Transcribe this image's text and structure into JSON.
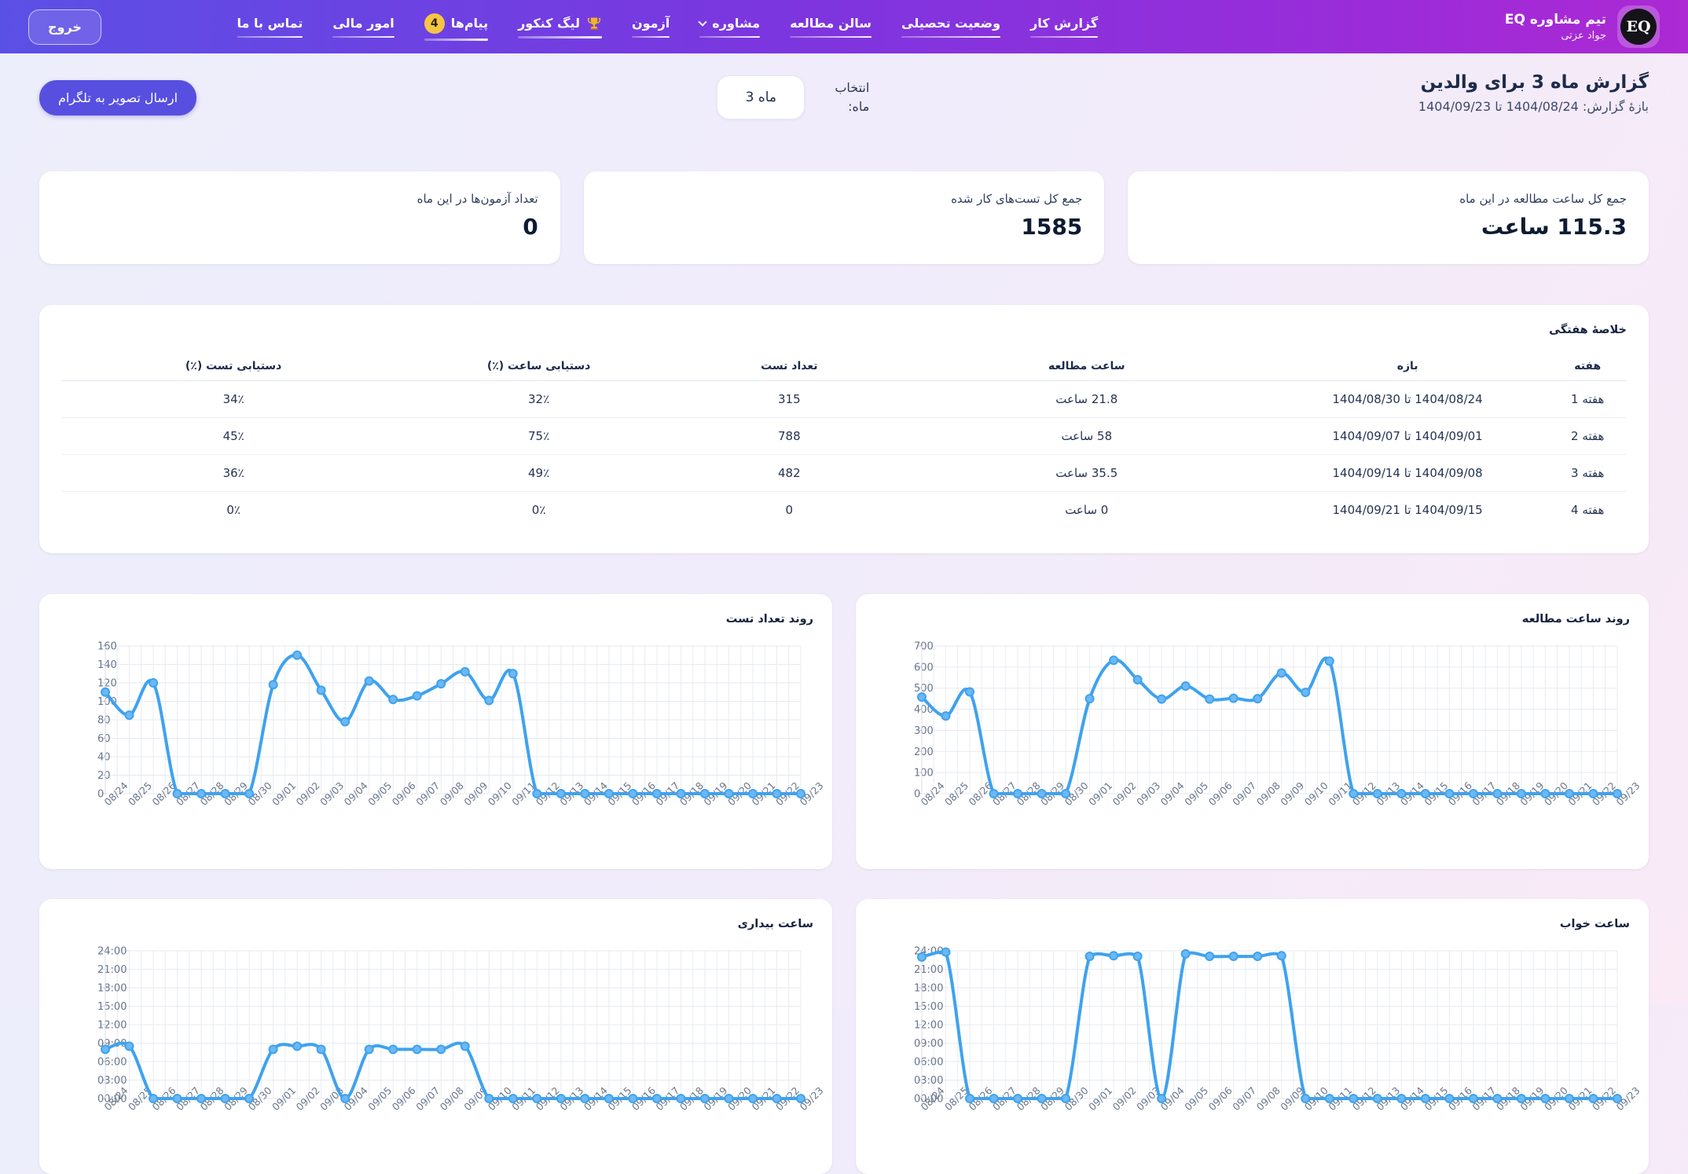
{
  "navbar": {
    "brand": {
      "title": "تیم مشاوره EQ",
      "subtitle": "جواد عزتی",
      "avatar_text": "EQ"
    },
    "items": [
      {
        "label": "گزارش کار"
      },
      {
        "label": "وضعیت تحصیلی"
      },
      {
        "label": "سالن مطالعه"
      },
      {
        "label": "مشاوره",
        "dropdown": true
      },
      {
        "label": "آزمون"
      },
      {
        "label": "لیگ کنکور",
        "icon": "trophy"
      },
      {
        "label": "پیام‌ها",
        "badge": "4"
      },
      {
        "label": "امور مالی"
      },
      {
        "label": "تماس با ما"
      }
    ],
    "logout_label": "خروج"
  },
  "header": {
    "title": "گزارش ماه 3 برای والدین",
    "subtitle": "بازهٔ گزارش: 1404/08/24 تا 1404/09/23",
    "month_select": {
      "label": "انتخاب ماه:",
      "value": "ماه 3"
    },
    "telegram_button": "ارسال تصویر به تلگرام"
  },
  "stats": [
    {
      "label": "جمع کل ساعت مطالعه در این ماه",
      "value": "115.3 ساعت"
    },
    {
      "label": "جمع کل تست‌های کار شده",
      "value": "1585"
    },
    {
      "label": "تعداد آزمون‌ها در این ماه",
      "value": "0"
    }
  ],
  "weekly_table": {
    "title": "خلاصهٔ هفتگی",
    "columns": [
      "هفته",
      "بازه",
      "ساعت مطالعه",
      "تعداد تست",
      "دستیابی ساعت (٪)",
      "دستیابی تست (٪)"
    ],
    "rows": [
      [
        "هفته 1",
        "1404/08/24 تا 1404/08/30",
        "21.8 ساعت",
        "315",
        "32٪",
        "34٪"
      ],
      [
        "هفته 2",
        "1404/09/01 تا 1404/09/07",
        "58 ساعت",
        "788",
        "75٪",
        "45٪"
      ],
      [
        "هفته 3",
        "1404/09/08 تا 1404/09/14",
        "35.5 ساعت",
        "482",
        "49٪",
        "36٪"
      ],
      [
        "هفته 4",
        "1404/09/15 تا 1404/09/21",
        "0 ساعت",
        "0",
        "0٪",
        "0٪"
      ]
    ]
  },
  "chart_data": [
    {
      "type": "line",
      "title": "روند ساعت مطالعه",
      "x": [
        "08/24",
        "08/25",
        "08/26",
        "08/27",
        "08/28",
        "08/29",
        "08/30",
        "09/01",
        "09/02",
        "09/03",
        "09/04",
        "09/05",
        "09/06",
        "09/07",
        "09/08",
        "09/09",
        "09/10",
        "09/11",
        "09/12",
        "09/13",
        "09/14",
        "09/15",
        "09/16",
        "09/17",
        "09/18",
        "09/19",
        "09/20",
        "09/21",
        "09/22",
        "09/23"
      ],
      "values": [
        458,
        368,
        482,
        0,
        0,
        0,
        0,
        450,
        632,
        540,
        448,
        510,
        448,
        452,
        450,
        572,
        480,
        628,
        0,
        0,
        0,
        0,
        0,
        0,
        0,
        0,
        0,
        0,
        0,
        0
      ],
      "ymin": 0,
      "ymax": 700,
      "ytick_values": [
        0,
        100,
        200,
        300,
        400,
        500,
        600,
        700
      ],
      "ytick_labels": [
        "0",
        "100",
        "200",
        "300",
        "400",
        "500",
        "600",
        "700"
      ],
      "grid": true,
      "legend": "none"
    },
    {
      "type": "line",
      "title": "روند تعداد تست",
      "x": [
        "08/24",
        "08/25",
        "08/26",
        "08/27",
        "08/28",
        "08/29",
        "08/30",
        "09/01",
        "09/02",
        "09/03",
        "09/04",
        "09/05",
        "09/06",
        "09/07",
        "09/08",
        "09/09",
        "09/10",
        "09/11",
        "09/12",
        "09/13",
        "09/14",
        "09/15",
        "09/16",
        "09/17",
        "09/18",
        "09/19",
        "09/20",
        "09/21",
        "09/22",
        "09/23"
      ],
      "values": [
        110,
        85,
        120,
        0,
        0,
        0,
        0,
        118,
        150,
        112,
        78,
        122,
        102,
        106,
        119,
        132,
        101,
        130,
        0,
        0,
        0,
        0,
        0,
        0,
        0,
        0,
        0,
        0,
        0,
        0
      ],
      "ymin": 0,
      "ymax": 160,
      "ytick_values": [
        0,
        20,
        40,
        60,
        80,
        100,
        120,
        140,
        160
      ],
      "ytick_labels": [
        "0",
        "20",
        "40",
        "60",
        "80",
        "100",
        "120",
        "140",
        "160"
      ],
      "grid": true,
      "legend": "none"
    },
    {
      "type": "line",
      "title": "ساعت خواب",
      "x": [
        "08/24",
        "08/25",
        "08/26",
        "08/27",
        "08/28",
        "08/29",
        "08/30",
        "09/01",
        "09/02",
        "09/03",
        "09/04",
        "09/05",
        "09/06",
        "09/07",
        "09/08",
        "09/09",
        "09/10",
        "09/11",
        "09/12",
        "09/13",
        "09/14",
        "09/15",
        "09/16",
        "09/17",
        "09/18",
        "09/19",
        "09/20",
        "09/21",
        "09/22",
        "09/23"
      ],
      "values": [
        23,
        23.8,
        0,
        0,
        0,
        0,
        0,
        23.1,
        23.2,
        23.1,
        0,
        23.5,
        23.1,
        23.1,
        23.1,
        23.2,
        0,
        0,
        0,
        0,
        0,
        0,
        0,
        0,
        0,
        0,
        0,
        0,
        0,
        0
      ],
      "ymin": 0,
      "ymax": 24,
      "ytick_values": [
        24,
        21,
        18,
        15,
        12,
        9,
        6,
        3,
        0
      ],
      "ytick_labels": [
        "24:00",
        "21:00",
        "18:00",
        "15:00",
        "12:00",
        "09:00",
        "06:00",
        "03:00",
        "00:00"
      ],
      "grid": true,
      "legend": "none"
    },
    {
      "type": "line",
      "title": "ساعت بیداری",
      "x": [
        "08/24",
        "08/25",
        "08/26",
        "08/27",
        "08/28",
        "08/29",
        "08/30",
        "09/01",
        "09/02",
        "09/03",
        "09/04",
        "09/05",
        "09/06",
        "09/07",
        "09/08",
        "09/09",
        "09/10",
        "09/11",
        "09/12",
        "09/13",
        "09/14",
        "09/15",
        "09/16",
        "09/17",
        "09/18",
        "09/19",
        "09/20",
        "09/21",
        "09/22",
        "09/23"
      ],
      "values": [
        8,
        8.5,
        0,
        0,
        0,
        0,
        0,
        8,
        8.5,
        8,
        0,
        8,
        8,
        8,
        8,
        8.5,
        0,
        0,
        0,
        0,
        0,
        0,
        0,
        0,
        0,
        0,
        0,
        0,
        0,
        0
      ],
      "ymin": 0,
      "ymax": 24,
      "ytick_values": [
        24,
        21,
        18,
        15,
        12,
        9,
        6,
        3,
        0
      ],
      "ytick_labels": [
        "24:00",
        "21:00",
        "18:00",
        "15:00",
        "12:00",
        "09:00",
        "06:00",
        "03:00",
        "00:00"
      ],
      "grid": true,
      "legend": "none"
    }
  ],
  "colors": {
    "line": "#3fa2ee",
    "marker": "#6cb8f5",
    "badge": "#f6c544",
    "primary_button": "#574fe0",
    "navbar_gradient_right": "#ac29d3",
    "navbar_gradient_left": "#5b50e6",
    "title_text": "#1c2b4a"
  }
}
